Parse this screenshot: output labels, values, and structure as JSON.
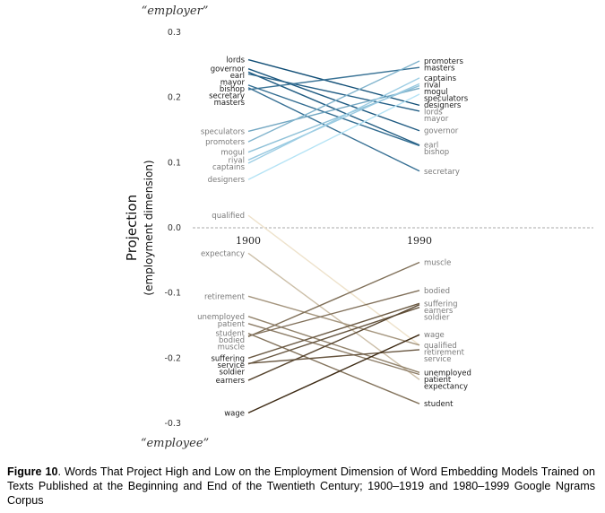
{
  "chart_data": {
    "type": "line",
    "subtype": "slope",
    "ylabel": "Projection",
    "ylabel_sub": "(employment dimension)",
    "top_anchor": "“employer”",
    "bottom_anchor": "“employee”",
    "ylim": [
      -0.3,
      0.3
    ],
    "yticks": [
      "0.3",
      "0.2",
      "0.1",
      "0.0",
      "-0.1",
      "-0.2",
      "-0.3"
    ],
    "ytick_values": [
      0.3,
      0.2,
      0.1,
      0.0,
      -0.1,
      -0.2,
      -0.3
    ],
    "x": [
      "1900",
      "1990"
    ],
    "grid": false,
    "zero_line": "dashed",
    "colors": {
      "positive_dark": "#0f4c75",
      "positive_light": "#b8e6f8",
      "negative_dark": "#3d2a14",
      "negative_light": "#efe3cc"
    },
    "series": [
      {
        "name": "lords",
        "values": [
          0.258,
          0.188
        ]
      },
      {
        "name": "governor",
        "values": [
          0.244,
          0.149
        ]
      },
      {
        "name": "earl",
        "values": [
          0.239,
          0.127
        ]
      },
      {
        "name": "mayor",
        "values": [
          0.236,
          0.179
        ]
      },
      {
        "name": "bishop",
        "values": [
          0.219,
          0.126
        ]
      },
      {
        "name": "secretary",
        "values": [
          0.215,
          0.087
        ]
      },
      {
        "name": "masters",
        "values": [
          0.212,
          0.246
        ]
      },
      {
        "name": "speculators",
        "values": [
          0.148,
          0.214
        ]
      },
      {
        "name": "promoters",
        "values": [
          0.132,
          0.256
        ]
      },
      {
        "name": "mogul",
        "values": [
          0.116,
          0.218
        ]
      },
      {
        "name": "rival",
        "values": [
          0.104,
          0.221
        ]
      },
      {
        "name": "captains",
        "values": [
          0.099,
          0.23
        ]
      },
      {
        "name": "designers",
        "values": [
          0.074,
          0.205
        ]
      },
      {
        "name": "qualified",
        "values": [
          0.019,
          -0.18
        ]
      },
      {
        "name": "expectancy",
        "values": [
          -0.039,
          -0.233
        ]
      },
      {
        "name": "retirement",
        "values": [
          -0.105,
          -0.18
        ]
      },
      {
        "name": "unemployed",
        "values": [
          -0.136,
          -0.222
        ]
      },
      {
        "name": "patient",
        "values": [
          -0.147,
          -0.225
        ]
      },
      {
        "name": "student",
        "values": [
          -0.162,
          -0.27
        ]
      },
      {
        "name": "muscle",
        "values": [
          -0.167,
          -0.053
        ]
      },
      {
        "name": "bodied",
        "values": [
          -0.166,
          -0.096
        ]
      },
      {
        "name": "suffering",
        "values": [
          -0.2,
          -0.116
        ]
      },
      {
        "name": "service",
        "values": [
          -0.208,
          -0.187
        ]
      },
      {
        "name": "soldier",
        "values": [
          -0.209,
          -0.122
        ]
      },
      {
        "name": "earners",
        "values": [
          -0.234,
          -0.118
        ]
      },
      {
        "name": "wage",
        "values": [
          -0.284,
          -0.164
        ]
      }
    ]
  },
  "caption": {
    "label": "Figure 10",
    "text": ". Words That Project High and Low on the Employment Dimension of Word Embedding Models Trained on Texts Published at the Beginning and End of the Twentieth Century; 1900–1919 and 1980–1999 Google Ngrams Corpus"
  }
}
